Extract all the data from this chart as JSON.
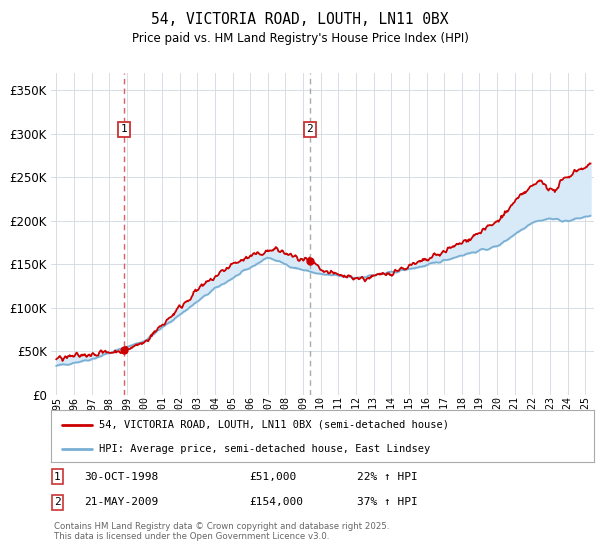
{
  "title": "54, VICTORIA ROAD, LOUTH, LN11 0BX",
  "subtitle": "Price paid vs. HM Land Registry's House Price Index (HPI)",
  "ytick_values": [
    0,
    50000,
    100000,
    150000,
    200000,
    250000,
    300000,
    350000
  ],
  "ylim": [
    0,
    370000
  ],
  "xlim_start": 1994.7,
  "xlim_end": 2025.5,
  "sale1_x": 1998.83,
  "sale1_y": 51000,
  "sale2_x": 2009.38,
  "sale2_y": 154000,
  "sale1_label": "30-OCT-1998",
  "sale1_price": "£51,000",
  "sale1_hpi": "22% ↑ HPI",
  "sale2_label": "21-MAY-2009",
  "sale2_price": "£154,000",
  "sale2_hpi": "37% ↑ HPI",
  "legend_line1": "54, VICTORIA ROAD, LOUTH, LN11 0BX (semi-detached house)",
  "legend_line2": "HPI: Average price, semi-detached house, East Lindsey",
  "footer": "Contains HM Land Registry data © Crown copyright and database right 2025.\nThis data is licensed under the Open Government Licence v3.0.",
  "red_color": "#cc0000",
  "blue_color": "#7aafd4",
  "fill_color": "#d8eaf7",
  "grid_color": "#d0d8e0",
  "bg_color": "#ffffff",
  "sale1_vline_color": "#e06060",
  "sale2_vline_color": "#aaaaaa",
  "box_edge_color": "#cc3333",
  "title_fontsize": 10.5,
  "subtitle_fontsize": 8.5
}
